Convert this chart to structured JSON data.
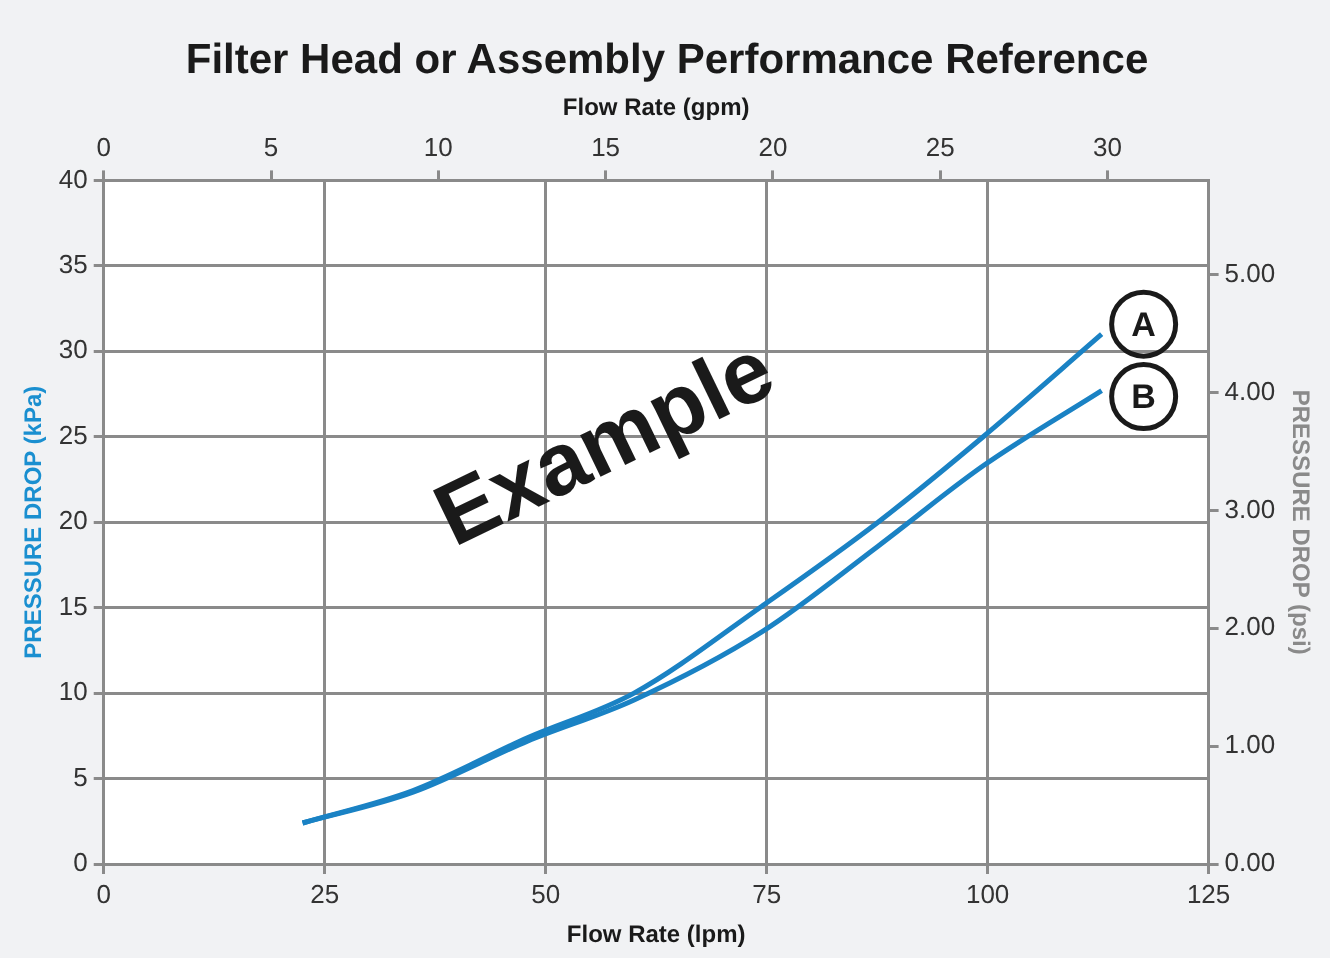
{
  "chart_data": {
    "type": "line",
    "title": "Filter Head or Assembly Performance Reference",
    "xlabel": "Flow Rate (lpm)",
    "x2label": "Flow Rate (gpm)",
    "ylabel": "PRESSURE DROP (kPa)",
    "y2label": "PRESSURE DROP (psi)",
    "xlim": [
      0,
      125
    ],
    "xticks": [
      0,
      25,
      50,
      75,
      100,
      125
    ],
    "x2lim": [
      0,
      33.02
    ],
    "x2ticks": [
      0,
      5,
      10,
      15,
      20,
      25,
      30
    ],
    "ylim": [
      0,
      40
    ],
    "yticks": [
      0,
      5,
      10,
      15,
      20,
      25,
      30,
      35,
      40
    ],
    "y2lim": [
      0,
      5.8
    ],
    "y2ticks": [
      {
        "value": 0,
        "label": "0.00"
      },
      {
        "value": 1,
        "label": "1.00"
      },
      {
        "value": 2,
        "label": "2.00"
      },
      {
        "value": 3,
        "label": "3.00"
      },
      {
        "value": 4,
        "label": "4.00"
      },
      {
        "value": 5,
        "label": "5.00"
      }
    ],
    "grid": true,
    "legend": false,
    "marker": "none",
    "line_style": "solid",
    "annotations": [
      "Example"
    ],
    "series": [
      {
        "name": "A",
        "color": "#1a82c4",
        "x": [
          22.5,
          35,
          48,
          60,
          74.5,
          87.6,
          99.5,
          112.9
        ],
        "values": [
          2.4,
          4.3,
          7.4,
          10.0,
          15.1,
          20.0,
          25.0,
          31.0
        ]
      },
      {
        "name": "B",
        "color": "#1a82c4",
        "x": [
          22.5,
          35,
          48,
          60,
          74.5,
          87.6,
          99.5,
          112.9
        ],
        "values": [
          2.4,
          4.2,
          7.2,
          9.6,
          13.6,
          18.6,
          23.3,
          27.7
        ]
      }
    ]
  }
}
